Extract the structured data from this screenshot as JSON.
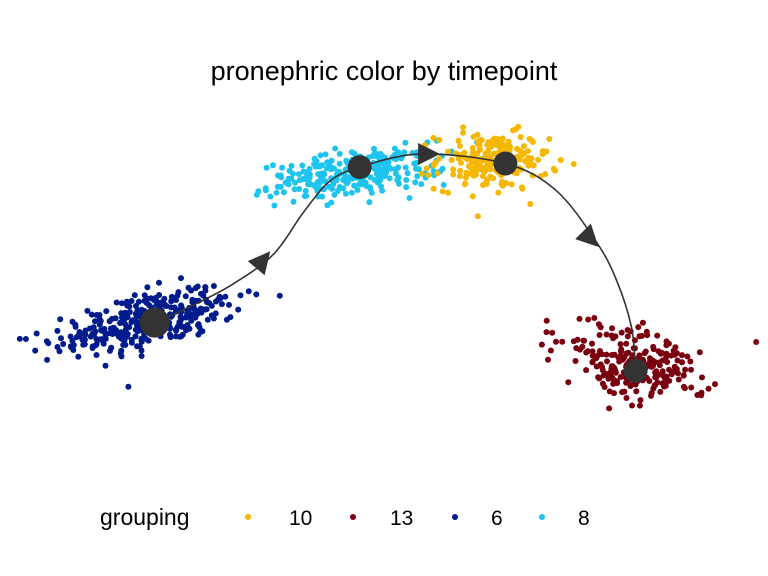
{
  "chart_data": {
    "type": "scatter",
    "title": "pronephric color by timepoint",
    "xlabel": "",
    "ylabel": "",
    "axes_visible": false,
    "grid": false,
    "xlim": [
      0,
      100
    ],
    "ylim": [
      0,
      100
    ],
    "legend": {
      "title": "grouping",
      "placement": "bottom",
      "entries": [
        {
          "label": "10",
          "color": "#F5B700"
        },
        {
          "label": "13",
          "color": "#7A0010"
        },
        {
          "label": "6",
          "color": "#001B8C"
        },
        {
          "label": "8",
          "color": "#1EC3EE"
        }
      ]
    },
    "series": [
      {
        "name": "6",
        "color": "#001B8C",
        "n": 340,
        "center": [
          16.1,
          37.8
        ],
        "spread": [
          7.2,
          3.6
        ],
        "angle_deg": 28
      },
      {
        "name": "8",
        "color": "#1EC3EE",
        "n": 260,
        "center": [
          45.6,
          79.2
        ],
        "spread": [
          6.4,
          3.0
        ],
        "angle_deg": 15
      },
      {
        "name": "10",
        "color": "#F5B700",
        "n": 200,
        "center": [
          65.3,
          82.7
        ],
        "spread": [
          4.0,
          4.0
        ],
        "angle_deg": 0
      },
      {
        "name": "13",
        "color": "#7A0010",
        "n": 230,
        "center": [
          85.8,
          25.7
        ],
        "spread": [
          5.6,
          4.6
        ],
        "angle_deg": -40
      }
    ],
    "trajectory": {
      "color": "#333333",
      "nodes": [
        {
          "group": "6",
          "x": 17.1,
          "y": 37.3
        },
        {
          "group": "8",
          "x": 46.4,
          "y": 81.1
        },
        {
          "group": "10",
          "x": 67.2,
          "y": 82.1
        },
        {
          "group": "13",
          "x": 85.8,
          "y": 23.7
        }
      ],
      "path": [
        [
          17.1,
          37.3
        ],
        [
          22.8,
          42.4
        ],
        [
          28.4,
          48.3
        ],
        [
          34.1,
          56.6
        ],
        [
          38.3,
          68.2
        ],
        [
          42.1,
          77.1
        ],
        [
          46.4,
          81.1
        ],
        [
          55.2,
          84.8
        ],
        [
          67.2,
          82.1
        ],
        [
          74.4,
          74.6
        ],
        [
          80.1,
          60.3
        ],
        [
          83.0,
          49.6
        ],
        [
          85.2,
          36.1
        ],
        [
          85.8,
          23.7
        ]
      ],
      "arrows": [
        {
          "at": [
            32.6,
            55.0
          ],
          "direction": [
            1.0,
            1.2
          ]
        },
        {
          "at": [
            56.3,
            84.8
          ],
          "direction": [
            1.0,
            0.0
          ]
        },
        {
          "at": [
            79.4,
            60.8
          ],
          "direction": [
            1.0,
            -1.0
          ]
        }
      ]
    }
  }
}
